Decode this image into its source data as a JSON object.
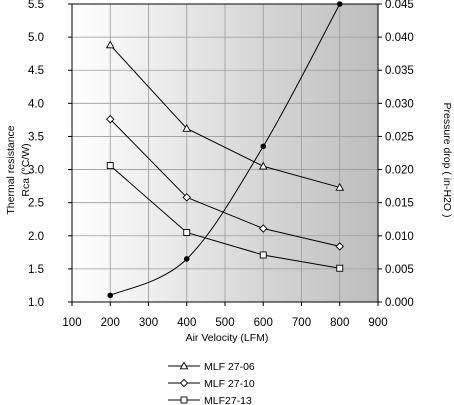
{
  "chart_data": {
    "type": "line",
    "xlabel": "Air Velocity (LFM)",
    "ylabel_lines": [
      "Thermal resistance",
      "Rca (°C/W)"
    ],
    "y2label": "Pressure drop ( in-H2O )",
    "xlim": [
      100,
      900
    ],
    "ylim": [
      1.0,
      5.5
    ],
    "y2lim": [
      0.0,
      0.045
    ],
    "x_ticks": [
      "100",
      "200",
      "300",
      "400",
      "500",
      "600",
      "700",
      "800",
      "900"
    ],
    "y_ticks": [
      "1.0",
      "1.5",
      "2.0",
      "2.5",
      "3.0",
      "3.5",
      "4.0",
      "4.5",
      "5.0",
      "5.5"
    ],
    "y2_ticks": [
      "0.000",
      "0.005",
      "0.010",
      "0.015",
      "0.020",
      "0.025",
      "0.030",
      "0.035",
      "0.040",
      "0.045"
    ],
    "background_gradient": [
      "#ffffff",
      "#bdbdbd"
    ],
    "grid": true,
    "series": [
      {
        "name": "MLF 27-06",
        "marker": "triangle",
        "axis": "left",
        "x": [
          200,
          400,
          600,
          800
        ],
        "y": [
          4.88,
          3.62,
          3.05,
          2.73
        ]
      },
      {
        "name": "MLF 27-10",
        "marker": "diamond",
        "axis": "left",
        "x": [
          200,
          400,
          600,
          800
        ],
        "y": [
          3.76,
          2.58,
          2.11,
          1.84
        ]
      },
      {
        "name": "MLF27-13",
        "marker": "square",
        "axis": "left",
        "x": [
          200,
          400,
          600,
          800
        ],
        "y": [
          3.06,
          2.05,
          1.71,
          1.51
        ]
      },
      {
        "axis": "right",
        "marker": "dot",
        "x": [
          200,
          400,
          600,
          800
        ],
        "y": [
          0.001,
          0.0065,
          0.0235,
          0.045
        ]
      }
    ],
    "legend_position": "bottom"
  }
}
